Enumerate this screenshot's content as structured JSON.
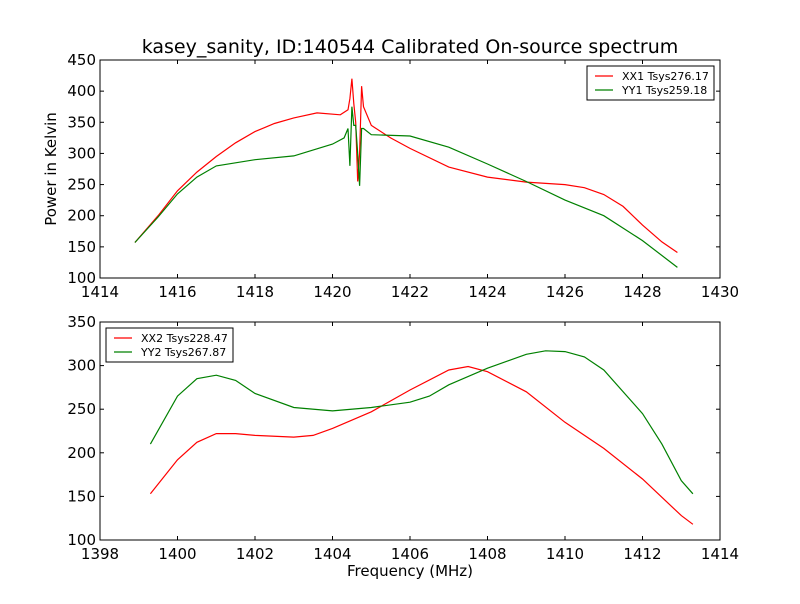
{
  "chart_data": [
    {
      "type": "line",
      "title": "kasey_sanity, ID:140544 Calibrated On-source spectrum",
      "xlabel": "",
      "ylabel": "Power in Kelvin",
      "xlim": [
        1414,
        1430
      ],
      "ylim": [
        100,
        450
      ],
      "xticks": [
        1414,
        1416,
        1418,
        1420,
        1422,
        1424,
        1426,
        1428,
        1430
      ],
      "yticks": [
        100,
        150,
        200,
        250,
        300,
        350,
        400,
        450
      ],
      "legend": "top-right",
      "series": [
        {
          "name": "XX1 Tsys276.17",
          "color": "#ff0000",
          "x": [
            1414.9,
            1415.5,
            1416,
            1416.5,
            1417,
            1417.5,
            1418,
            1418.5,
            1419,
            1419.6,
            1420.2,
            1420.4,
            1420.45,
            1420.5,
            1420.55,
            1420.6,
            1420.65,
            1420.7,
            1420.75,
            1420.8,
            1421,
            1421.5,
            1422,
            1423,
            1424,
            1425,
            1426,
            1426.5,
            1427,
            1427.5,
            1428,
            1428.5,
            1428.9
          ],
          "y": [
            157,
            200,
            240,
            270,
            295,
            317,
            335,
            348,
            357,
            365,
            362,
            370,
            388,
            420,
            380,
            350,
            255,
            300,
            408,
            375,
            345,
            325,
            308,
            278,
            262,
            254,
            250,
            245,
            234,
            215,
            185,
            158,
            141
          ]
        },
        {
          "name": "YY1 Tsys259.18",
          "color": "#008000",
          "x": [
            1414.9,
            1415.5,
            1416,
            1416.5,
            1417,
            1418,
            1419,
            1420,
            1420.3,
            1420.4,
            1420.45,
            1420.5,
            1420.55,
            1420.6,
            1420.65,
            1420.7,
            1420.75,
            1420.8,
            1421,
            1422,
            1423,
            1424,
            1425,
            1426,
            1427,
            1428,
            1428.9
          ],
          "y": [
            157,
            198,
            235,
            262,
            280,
            290,
            296,
            315,
            325,
            340,
            280,
            375,
            345,
            345,
            300,
            248,
            340,
            340,
            330,
            328,
            310,
            283,
            255,
            225,
            200,
            160,
            117
          ]
        }
      ]
    },
    {
      "type": "line",
      "title": "",
      "xlabel": "Frequency (MHz)",
      "ylabel": "",
      "xlim": [
        1398,
        1414
      ],
      "ylim": [
        100,
        350
      ],
      "xticks": [
        1398,
        1400,
        1402,
        1404,
        1406,
        1408,
        1410,
        1412,
        1414
      ],
      "yticks": [
        100,
        150,
        200,
        250,
        300,
        350
      ],
      "legend": "top-left",
      "series": [
        {
          "name": "XX2 Tsys228.47",
          "color": "#ff0000",
          "x": [
            1399.3,
            1400,
            1400.5,
            1401,
            1401.5,
            1402,
            1403,
            1403.5,
            1404,
            1405,
            1406,
            1407,
            1407.5,
            1408,
            1409,
            1410,
            1411,
            1412,
            1413,
            1413.3
          ],
          "y": [
            153,
            192,
            212,
            222,
            222,
            220,
            218,
            220,
            228,
            247,
            272,
            295,
            299,
            293,
            270,
            235,
            205,
            170,
            128,
            118
          ]
        },
        {
          "name": "YY2 Tsys267.87",
          "color": "#008000",
          "x": [
            1399.3,
            1400,
            1400.5,
            1401,
            1401.5,
            1402,
            1403,
            1404,
            1405,
            1406,
            1406.5,
            1407,
            1408,
            1409,
            1409.5,
            1410,
            1410.5,
            1411,
            1412,
            1412.5,
            1413,
            1413.3
          ],
          "y": [
            210,
            265,
            285,
            289,
            283,
            268,
            252,
            248,
            252,
            258,
            265,
            278,
            297,
            313,
            317,
            316,
            310,
            295,
            245,
            210,
            168,
            153
          ]
        }
      ]
    }
  ]
}
